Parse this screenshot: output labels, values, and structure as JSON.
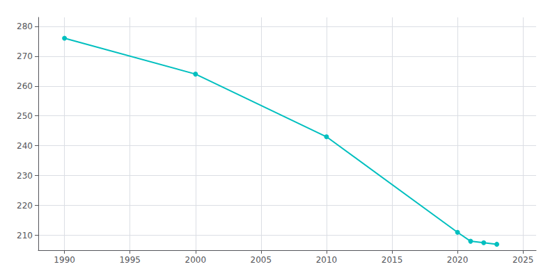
{
  "chart_data": {
    "type": "line",
    "x": [
      1990,
      2000,
      2010,
      2020,
      2021,
      2022,
      2023
    ],
    "values": [
      276,
      264,
      243,
      211,
      208,
      207.5,
      207
    ],
    "color": "#00BFBF",
    "marker": "circle",
    "xlim": [
      1988,
      2026
    ],
    "xticks": [
      1990,
      1995,
      2000,
      2005,
      2010,
      2015,
      2020,
      2025
    ],
    "ylim": [
      205,
      283
    ],
    "yticks": [
      210,
      220,
      230,
      240,
      250,
      260,
      270,
      280
    ],
    "grid": true
  }
}
